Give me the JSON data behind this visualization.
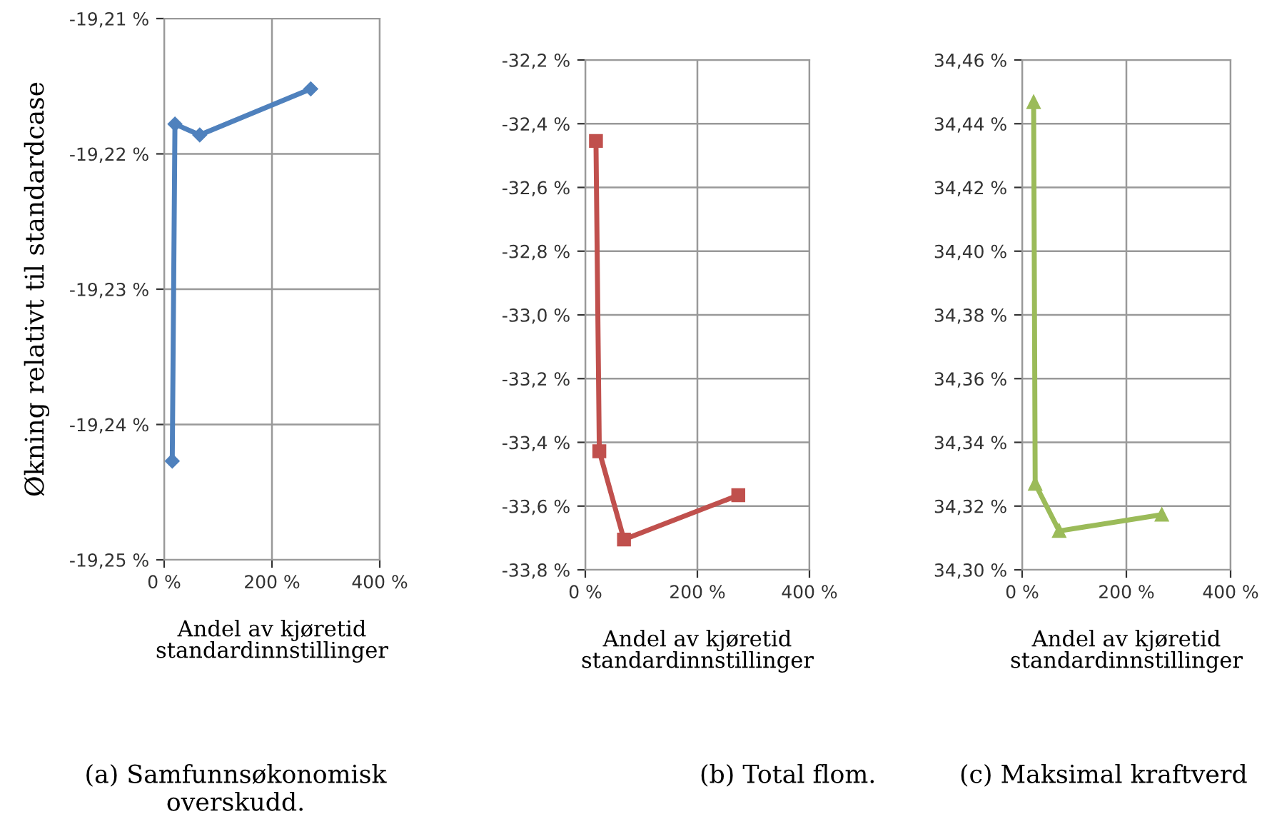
{
  "chart_data": [
    {
      "type": "line",
      "xlabel": "Andel av kjøretid\nstandardinnstillinger",
      "ylabel": "Økning relativt til standardcase",
      "marker": "diamond",
      "grid": true,
      "series": [
        {
          "x": [
            15,
            20,
            66,
            272
          ],
          "values": [
            -19.2427,
            -19.2178,
            -19.2186,
            -19.2152
          ],
          "color": "#4f81bd"
        }
      ],
      "xlim": [
        0,
        400
      ],
      "xticks": [
        {
          "value": 0,
          "label": "0 %"
        },
        {
          "value": 200,
          "label": "200 %"
        },
        {
          "value": 400,
          "label": "400 %"
        }
      ],
      "ylim": [
        -19.25,
        -19.21
      ],
      "yticks": [
        {
          "value": -19.25,
          "label": "-19,25 %"
        },
        {
          "value": -19.24,
          "label": "-19,24 %"
        },
        {
          "value": -19.23,
          "label": "-19,23 %"
        },
        {
          "value": -19.22,
          "label": "-19,22 %"
        },
        {
          "value": -19.21,
          "label": "-19,21 %"
        }
      ],
      "annotations": [
        "(a) Samfunnsøkonomisk\noverskudd."
      ]
    },
    {
      "type": "line",
      "xlabel": "Andel av kjøretid\nstandardinnstillinger",
      "marker": "square",
      "grid": true,
      "series": [
        {
          "x": [
            19,
            25,
            69,
            273
          ],
          "values": [
            -32.454,
            -33.428,
            -33.705,
            -33.566
          ],
          "color": "#c0504d"
        }
      ],
      "xlim": [
        0,
        400
      ],
      "xticks": [
        {
          "value": 0,
          "label": "0 %"
        },
        {
          "value": 200,
          "label": "200 %"
        },
        {
          "value": 400,
          "label": "400 %"
        }
      ],
      "ylim": [
        -33.8,
        -32.2
      ],
      "yticks": [
        {
          "value": -33.8,
          "label": "-33,8 %"
        },
        {
          "value": -33.6,
          "label": "-33,6 %"
        },
        {
          "value": -33.4,
          "label": "-33,4 %"
        },
        {
          "value": -33.2,
          "label": "-33,2 %"
        },
        {
          "value": -33.0,
          "label": "-33,0 %"
        },
        {
          "value": -32.8,
          "label": "-32,8 %"
        },
        {
          "value": -32.6,
          "label": "-32,6 %"
        },
        {
          "value": -32.4,
          "label": "-32,4 %"
        },
        {
          "value": -32.2,
          "label": "-32,2 %"
        }
      ],
      "annotations": [
        "(b) Total flom."
      ]
    },
    {
      "type": "line",
      "xlabel": "Andel av kjøretid\nstandardinnstillinger",
      "marker": "triangle",
      "grid": true,
      "series": [
        {
          "x": [
            22,
            25,
            71,
            268
          ],
          "values": [
            34.4468,
            34.327,
            34.3122,
            34.3173
          ],
          "color": "#9bbb59"
        }
      ],
      "xlim": [
        0,
        400
      ],
      "xticks": [
        {
          "value": 0,
          "label": "0 %"
        },
        {
          "value": 200,
          "label": "200 %"
        },
        {
          "value": 400,
          "label": "400 %"
        }
      ],
      "ylim": [
        34.3,
        34.46
      ],
      "yticks": [
        {
          "value": 34.3,
          "label": "34,30 %"
        },
        {
          "value": 34.32,
          "label": "34,32 %"
        },
        {
          "value": 34.34,
          "label": "34,34 %"
        },
        {
          "value": 34.36,
          "label": "34,36 %"
        },
        {
          "value": 34.38,
          "label": "34,38 %"
        },
        {
          "value": 34.4,
          "label": "34,40 %"
        },
        {
          "value": 34.42,
          "label": "34,42 %"
        },
        {
          "value": 34.44,
          "label": "34,44 %"
        },
        {
          "value": 34.46,
          "label": "34,46 %"
        }
      ],
      "annotations": [
        "(c) Maksimal kraftverd"
      ]
    }
  ]
}
